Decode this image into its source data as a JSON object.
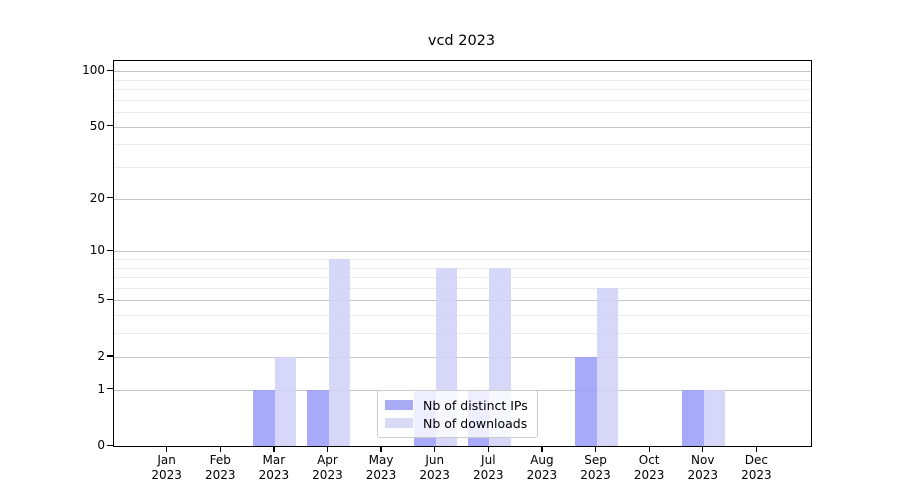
{
  "chart_data": {
    "type": "bar",
    "title": "vcd 2023",
    "xlabel": "",
    "ylabel": "",
    "categories": [
      "Jan 2023",
      "Feb 2023",
      "Mar 2023",
      "Apr 2023",
      "May 2023",
      "Jun 2023",
      "Jul 2023",
      "Aug 2023",
      "Sep 2023",
      "Oct 2023",
      "Nov 2023",
      "Dec 2023"
    ],
    "x_tick_months": [
      "Jan",
      "Feb",
      "Mar",
      "Apr",
      "May",
      "Jun",
      "Jul",
      "Aug",
      "Sep",
      "Oct",
      "Nov",
      "Dec"
    ],
    "x_tick_year": "2023",
    "series": [
      {
        "name": "Nb of distinct IPs",
        "color": "#a8aaf4",
        "bar_rgba": "rgba(155,158,247,0.88)",
        "values": [
          0,
          0,
          1,
          1,
          0,
          1,
          1,
          0,
          2,
          0,
          1,
          0
        ]
      },
      {
        "name": "Nb of downloads",
        "color": "#d8daf8",
        "bar_rgba": "rgba(208,210,248,0.88)",
        "values": [
          0,
          0,
          2,
          9,
          0,
          8,
          8,
          0,
          6,
          0,
          1,
          0
        ]
      }
    ],
    "y_scale": "log1p",
    "y_ticks": [
      100,
      50,
      20,
      10,
      5,
      2,
      1,
      0
    ],
    "y_minor_ticks": [
      90,
      80,
      70,
      60,
      40,
      30,
      9,
      8,
      7,
      6,
      4,
      3
    ],
    "ylim": [
      0,
      107
    ],
    "grid": "on",
    "legend_position": "lower center inside"
  }
}
